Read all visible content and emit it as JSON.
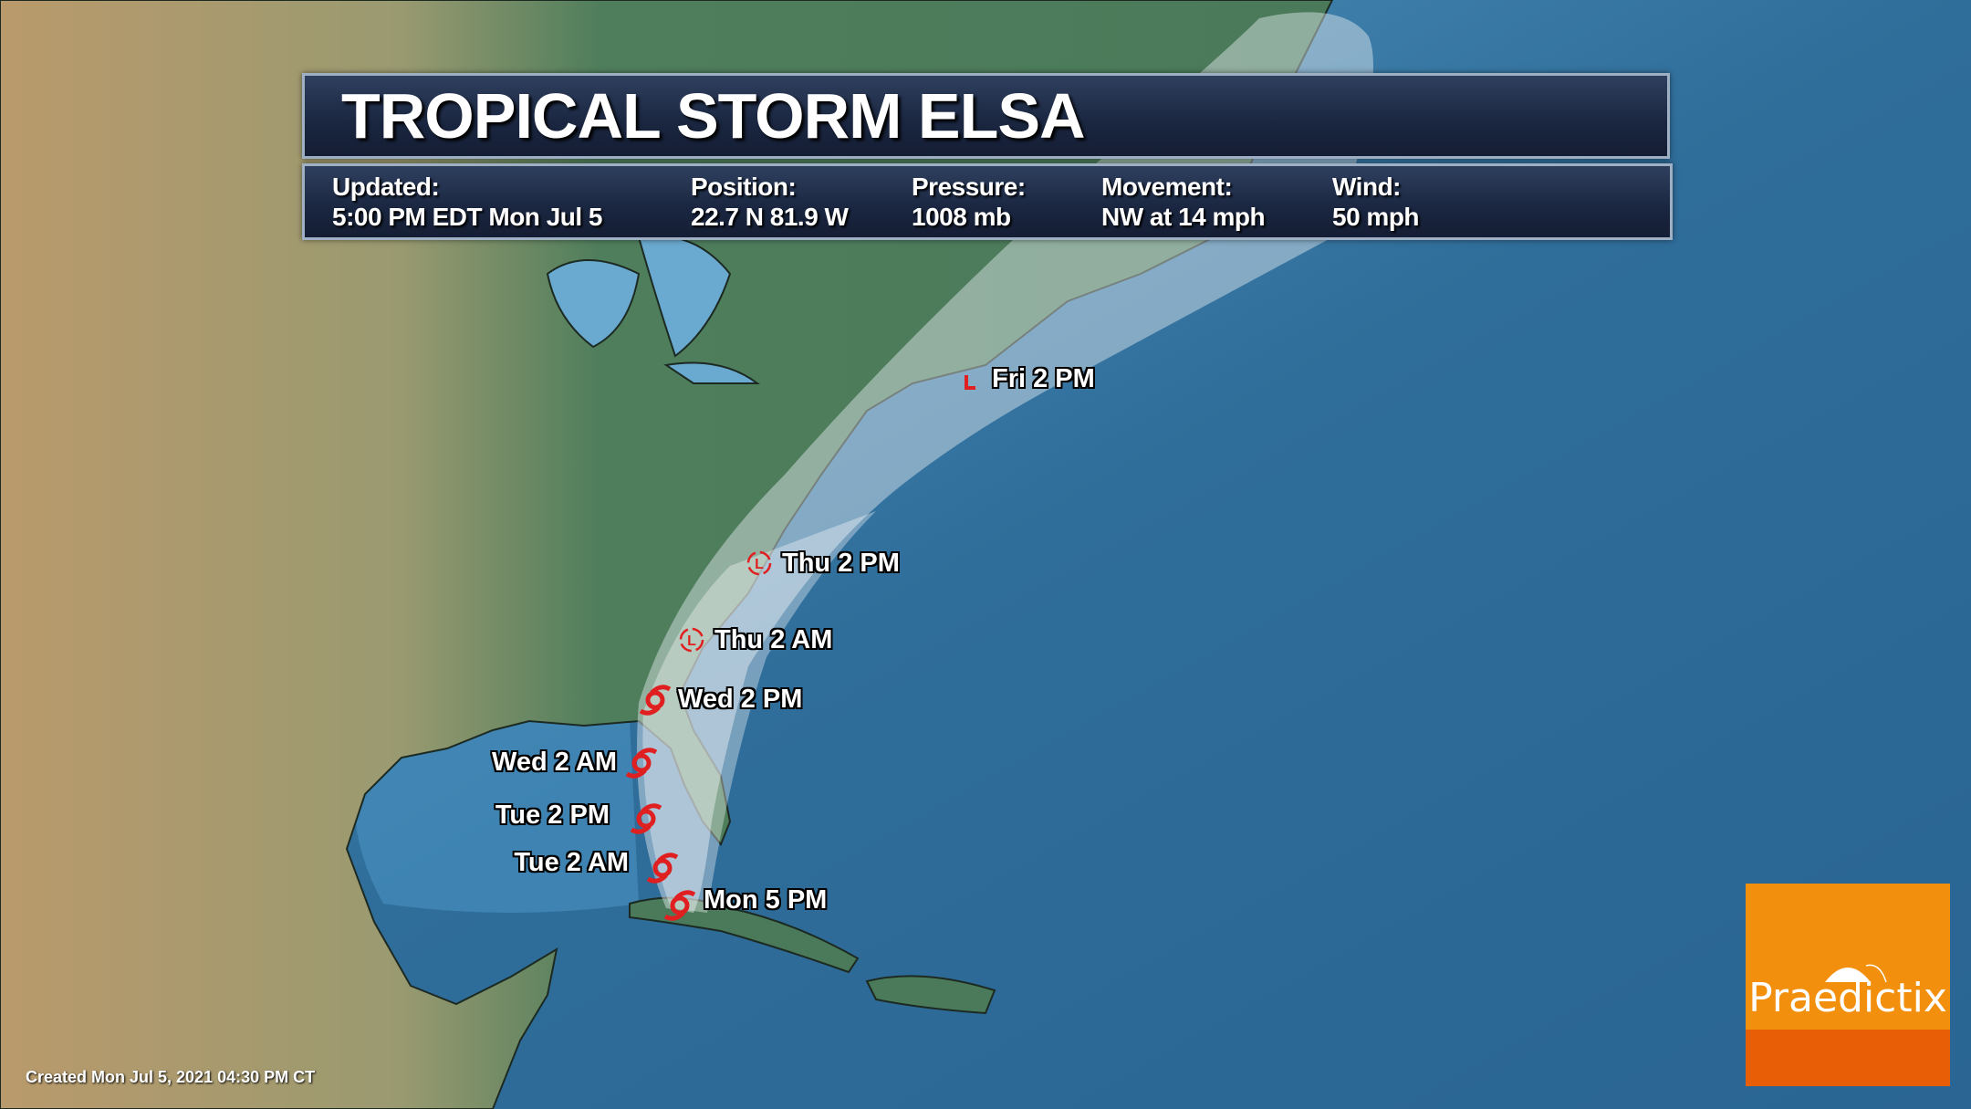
{
  "header": {
    "title": "TROPICAL STORM ELSA"
  },
  "info": [
    {
      "label": "Updated:",
      "value": "5:00 PM EDT Mon Jul 5"
    },
    {
      "label": "Position:",
      "value": "22.7 N  81.9 W"
    },
    {
      "label": "Pressure:",
      "value": "1008 mb"
    },
    {
      "label": "Movement:",
      "value": "NW at 14 mph"
    },
    {
      "label": "Wind:",
      "value": "50 mph"
    }
  ],
  "track": [
    {
      "label": "Mon 5 PM",
      "icon": "tropical-storm-icon"
    },
    {
      "label": "Tue 2 AM",
      "icon": "tropical-storm-icon"
    },
    {
      "label": "Tue 2 PM",
      "icon": "tropical-storm-icon"
    },
    {
      "label": "Wed 2 AM",
      "icon": "tropical-storm-icon"
    },
    {
      "label": "Wed 2 PM",
      "icon": "tropical-storm-icon"
    },
    {
      "label": "Thu 2 AM",
      "icon": "low-pressure-icon"
    },
    {
      "label": "Thu 2 PM",
      "icon": "low-pressure-icon"
    },
    {
      "label": "Fri 2 PM",
      "icon": "post-tropical-low-icon"
    }
  ],
  "footer": {
    "created": "Created Mon Jul  5, 2021 04:30 PM CT"
  },
  "logo": {
    "text": "Praedictix"
  },
  "colors": {
    "ocean": "#2f6d9a",
    "land": "#4e7d5c",
    "storm_icon": "#e02020",
    "logo_orange": "#f28f0c",
    "logo_dark_orange": "#e85e06",
    "panel": "#1a2640"
  }
}
